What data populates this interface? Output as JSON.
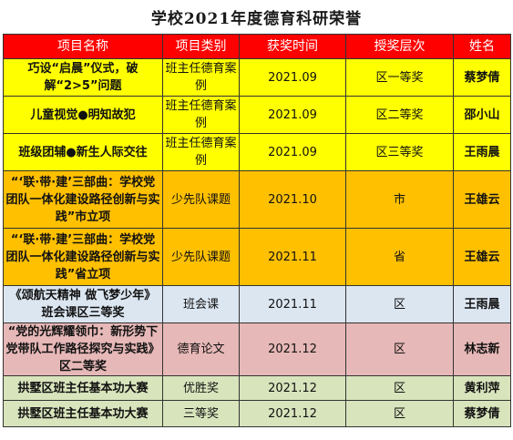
{
  "title": "学校2021年度德育科研荣誉",
  "headers": [
    "项目名称",
    "项目类别",
    "获奖时间",
    "授奖层次",
    "姓名"
  ],
  "rows": [
    {
      "project": "巧设“启晨”仪式，破解“2>5”问题",
      "category": "班主任德育案例",
      "date": "2021.09",
      "level": "区一等奖",
      "name": "蔡梦倩",
      "color": "#ffff00"
    },
    {
      "project": "儿童视觉●明知故犯",
      "category": "班主任德育案例",
      "date": "2021.09",
      "level": "区二等奖",
      "name": "邵小山",
      "color": "#ffff00"
    },
    {
      "project": "班级团辅●新生人际交往",
      "category": "班主任德育案例",
      "date": "2021.09",
      "level": "区三等奖",
      "name": "王雨晨",
      "color": "#ffff00"
    },
    {
      "project": "“‘联·带·建’三部曲：学校党团队一体化建设路径创新与实践”市立项",
      "category": "少先队课题",
      "date": "2021.10",
      "level": "市",
      "name": "王雄云",
      "color": "#ffc000"
    },
    {
      "project": "“‘联·带·建’三部曲：学校党团队一体化建设路径创新与实践”省立项",
      "category": "少先队课题",
      "date": "2021.11",
      "level": "省",
      "name": "王雄云",
      "color": "#ffc000"
    },
    {
      "project": "《颂航天精神 做飞梦少年》班会课区三等奖",
      "category": "班会课",
      "date": "2021.11",
      "level": "区",
      "name": "王雨晨",
      "color": "#dce6f1"
    },
    {
      "project": "“党的光辉耀领巾：新形势下党带队工作路径探究与实践》区二等奖",
      "category": "德育论文",
      "date": "2021.12",
      "level": "区",
      "name": "林志新",
      "color": "#e6b8b7"
    },
    {
      "project": "拱墅区班主任基本功大赛",
      "category": "优胜奖",
      "date": "2021.12",
      "level": "区",
      "name": "黄利萍",
      "color": "#d8e4bc"
    },
    {
      "project": "拱墅区班主任基本功大赛",
      "category": "三等奖",
      "date": "2021.12",
      "level": "区",
      "name": "蔡梦倩",
      "color": "#d8e4bc"
    }
  ]
}
